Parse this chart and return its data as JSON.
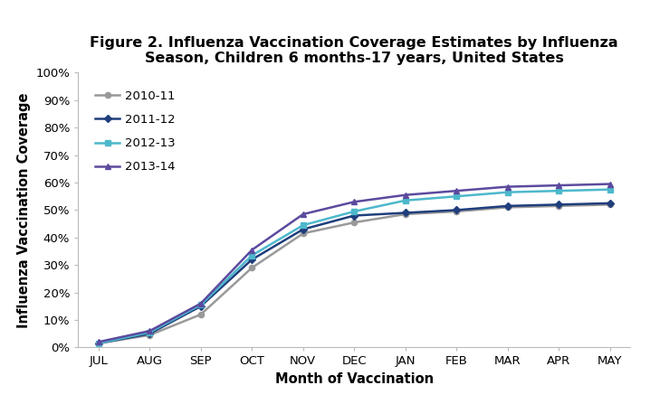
{
  "title": "Figure 2. Influenza Vaccination Coverage Estimates by Influenza\nSeason, Children 6 months-17 years, United States",
  "xlabel": "Month of Vaccination",
  "ylabel": "Influenza Vaccination Coverage",
  "months": [
    "JUL",
    "AUG",
    "SEP",
    "OCT",
    "NOV",
    "DEC",
    "JAN",
    "FEB",
    "MAR",
    "APR",
    "MAY"
  ],
  "series": [
    {
      "label": "2010-11",
      "color": "#999999",
      "marker": "o",
      "values": [
        1.5,
        4.5,
        12.0,
        29.0,
        41.5,
        45.5,
        48.5,
        49.5,
        51.0,
        51.5,
        52.0
      ]
    },
    {
      "label": "2011-12",
      "color": "#1f3e7c",
      "marker": "D",
      "values": [
        1.5,
        5.0,
        15.0,
        32.0,
        43.0,
        48.0,
        49.0,
        50.0,
        51.5,
        52.0,
        52.5
      ]
    },
    {
      "label": "2012-13",
      "color": "#4db8cc",
      "marker": "s",
      "values": [
        1.5,
        5.5,
        15.5,
        33.5,
        44.5,
        49.5,
        53.5,
        55.0,
        56.5,
        57.0,
        57.5
      ]
    },
    {
      "label": "2013-14",
      "color": "#5c4a9e",
      "marker": "^",
      "values": [
        2.0,
        6.0,
        16.0,
        35.5,
        48.5,
        53.0,
        55.5,
        57.0,
        58.5,
        59.0,
        59.5
      ]
    }
  ],
  "ylim": [
    0,
    100
  ],
  "yticks": [
    0,
    10,
    20,
    30,
    40,
    50,
    60,
    70,
    80,
    90,
    100
  ],
  "background_color": "#ffffff",
  "title_fontsize": 11.5,
  "axis_label_fontsize": 10.5,
  "tick_fontsize": 9.5,
  "legend_fontsize": 9.5
}
